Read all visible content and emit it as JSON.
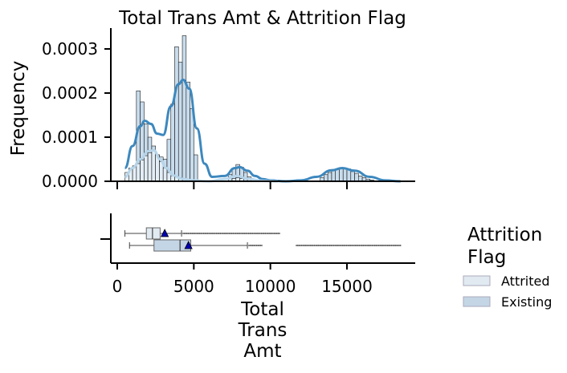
{
  "title": "Total Trans Amt & Attrition Flag",
  "chart_data": [
    {
      "type": "histogram",
      "title": "Total Trans Amt & Attrition Flag",
      "xlabel": "",
      "ylabel": "Frequency",
      "xlim": [
        -400,
        19500
      ],
      "ylim": [
        0,
        0.00034
      ],
      "xticks": [
        0,
        5000,
        10000,
        15000
      ],
      "yticks": [
        0,
        0.0001,
        0.0002,
        0.0003
      ],
      "ytick_labels": [
        "0.0000",
        "0.0001",
        "0.0002",
        "0.0003"
      ],
      "bin_width": 250,
      "series": [
        {
          "name": "Existing",
          "bins": [
            {
              "x0": 1250,
              "density": 0.000205
            },
            {
              "x0": 1500,
              "density": 0.00018
            },
            {
              "x0": 1750,
              "density": 0.00013
            },
            {
              "x0": 2000,
              "density": 0.0001
            },
            {
              "x0": 2250,
              "density": 8e-05
            },
            {
              "x0": 2500,
              "density": 6e-05
            },
            {
              "x0": 2750,
              "density": 5.5e-05
            },
            {
              "x0": 3000,
              "density": 5e-05
            },
            {
              "x0": 3250,
              "density": 9.5e-05
            },
            {
              "x0": 3500,
              "density": 0.000175
            },
            {
              "x0": 3750,
              "density": 0.000305
            },
            {
              "x0": 4000,
              "density": 0.00027
            },
            {
              "x0": 4250,
              "density": 0.00033
            },
            {
              "x0": 4500,
              "density": 0.000225
            },
            {
              "x0": 4750,
              "density": 0.000165
            },
            {
              "x0": 5000,
              "density": 6e-05
            },
            {
              "x0": 7250,
              "density": 1.5e-05
            },
            {
              "x0": 7500,
              "density": 3e-05
            },
            {
              "x0": 7750,
              "density": 3.8e-05
            },
            {
              "x0": 8000,
              "density": 3.2e-05
            },
            {
              "x0": 8250,
              "density": 2e-05
            },
            {
              "x0": 8500,
              "density": 1e-05
            },
            {
              "x0": 13250,
              "density": 8e-06
            },
            {
              "x0": 13500,
              "density": 1.5e-05
            },
            {
              "x0": 13750,
              "density": 2e-05
            },
            {
              "x0": 14000,
              "density": 2.5e-05
            },
            {
              "x0": 14250,
              "density": 2.8e-05
            },
            {
              "x0": 14500,
              "density": 3e-05
            },
            {
              "x0": 14750,
              "density": 2.8e-05
            },
            {
              "x0": 15000,
              "density": 2.8e-05
            },
            {
              "x0": 15250,
              "density": 2.2e-05
            },
            {
              "x0": 15500,
              "density": 1.8e-05
            },
            {
              "x0": 15750,
              "density": 1.2e-05
            },
            {
              "x0": 16000,
              "density": 8e-06
            },
            {
              "x0": 16250,
              "density": 5e-06
            },
            {
              "x0": 16500,
              "density": 3e-06
            }
          ],
          "kde": [
            [
              500,
              3e-05
            ],
            [
              1000,
              8e-05
            ],
            [
              1500,
              0.000125
            ],
            [
              1800,
              0.000137
            ],
            [
              2200,
              0.00013
            ],
            [
              2600,
              0.000108
            ],
            [
              3000,
              0.000105
            ],
            [
              3500,
              0.00017
            ],
            [
              4000,
              0.00022
            ],
            [
              4300,
              0.00023
            ],
            [
              4700,
              0.00021
            ],
            [
              5200,
              0.00012
            ],
            [
              5700,
              4e-05
            ],
            [
              6200,
              1e-05
            ],
            [
              7000,
              1.2e-05
            ],
            [
              7700,
              3e-05
            ],
            [
              8000,
              3.2e-05
            ],
            [
              8500,
              2.4e-05
            ],
            [
              9000,
              1.2e-05
            ],
            [
              9500,
              5e-06
            ],
            [
              10000,
              2e-06
            ],
            [
              11000,
              0.0
            ],
            [
              12000,
              2e-06
            ],
            [
              13000,
              1e-05
            ],
            [
              14000,
              2.5e-05
            ],
            [
              14700,
              3e-05
            ],
            [
              15500,
              2.4e-05
            ],
            [
              16500,
              1e-05
            ],
            [
              17500,
              2e-06
            ],
            [
              18500,
              0.0
            ]
          ]
        },
        {
          "name": "Attrited",
          "bins": [
            {
              "x0": 500,
              "density": 2e-05
            },
            {
              "x0": 750,
              "density": 3e-05
            },
            {
              "x0": 1000,
              "density": 3.5e-05
            },
            {
              "x0": 1250,
              "density": 4e-05
            },
            {
              "x0": 1500,
              "density": 4.8e-05
            },
            {
              "x0": 1750,
              "density": 5.8e-05
            },
            {
              "x0": 2000,
              "density": 6.5e-05
            },
            {
              "x0": 2250,
              "density": 7e-05
            },
            {
              "x0": 2500,
              "density": 6e-05
            },
            {
              "x0": 2750,
              "density": 4.5e-05
            },
            {
              "x0": 3000,
              "density": 3e-05
            },
            {
              "x0": 3250,
              "density": 2e-05
            },
            {
              "x0": 3500,
              "density": 1.2e-05
            },
            {
              "x0": 3750,
              "density": 1e-05
            },
            {
              "x0": 4000,
              "density": 8e-06
            },
            {
              "x0": 7500,
              "density": 6e-06
            },
            {
              "x0": 7750,
              "density": 8e-06
            },
            {
              "x0": 8000,
              "density": 6e-06
            }
          ],
          "kde": [
            [
              500,
              1e-05
            ],
            [
              1000,
              3e-05
            ],
            [
              1500,
              5e-05
            ],
            [
              2000,
              6.8e-05
            ],
            [
              2400,
              7e-05
            ],
            [
              2800,
              5e-05
            ],
            [
              3200,
              3e-05
            ],
            [
              3700,
              1.3e-05
            ],
            [
              4200,
              6e-06
            ],
            [
              5000,
              2e-06
            ],
            [
              6000,
              0.0
            ],
            [
              7000,
              5e-06
            ],
            [
              7800,
              1.2e-05
            ],
            [
              8500,
              6e-06
            ],
            [
              9500,
              1e-06
            ],
            [
              10500,
              0.0
            ]
          ]
        }
      ]
    },
    {
      "type": "boxplot",
      "xlabel": "Total\nTrans\nAmt",
      "xlim": [
        -400,
        19500
      ],
      "xticks": [
        0,
        5000,
        10000,
        15000
      ],
      "xtick_labels": [
        "0",
        "5000",
        "10000",
        "15000"
      ],
      "legend_title": "Attrition\nFlag",
      "legend_placement": "right",
      "series": [
        {
          "name": "Attrited",
          "whisker_low": 500,
          "q1": 1900,
          "median": 2300,
          "q3": 2800,
          "whisker_high": 4200,
          "mean": 3100,
          "outlier_range": [
            4300,
            10600
          ]
        },
        {
          "name": "Existing",
          "whisker_low": 800,
          "q1": 2400,
          "median": 4100,
          "q3": 4800,
          "whisker_high": 8500,
          "mean": 4650,
          "outlier_range": [
            8600,
            9500
          ],
          "outlier_range_2": [
            11700,
            18500
          ]
        }
      ]
    }
  ],
  "colors": {
    "existing_bar": "#c2d8ea",
    "attrited_bar": "#e4eef6",
    "existing_kde": "#3d88be",
    "attrited_kde": "#b6d4e9",
    "attrited_box": "#e1e9f1",
    "existing_box": "#c4d6e5",
    "mean_marker": "#0000b4",
    "mean_edge": "#000000"
  }
}
